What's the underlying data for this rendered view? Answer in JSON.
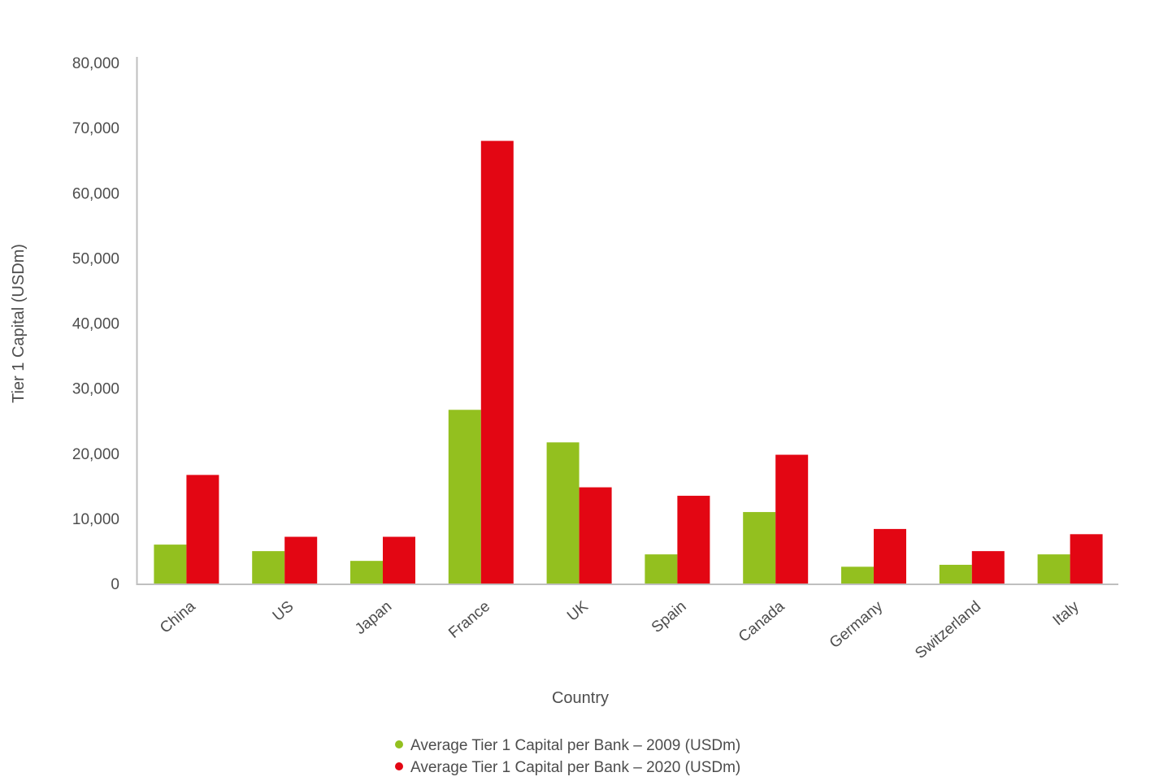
{
  "chart_data": {
    "type": "bar",
    "title": "",
    "xlabel": "Country",
    "ylabel": "Tier 1 Capital (USDm)",
    "categories": [
      "China",
      "US",
      "Japan",
      "France",
      "UK",
      "Spain",
      "Canada",
      "Germany",
      "Switzerland",
      "Italy"
    ],
    "series": [
      {
        "name": "Average Tier 1 Capital per Bank – 2009 (USDm)",
        "color": "#93c01f",
        "values": [
          6100,
          5100,
          3600,
          26800,
          21800,
          4600,
          11100,
          2700,
          3000,
          4600
        ]
      },
      {
        "name": "Average Tier 1 Capital per Bank – 2020 (USDm)",
        "color": "#e30613",
        "values": [
          16800,
          7300,
          7300,
          68100,
          14900,
          13600,
          19900,
          8500,
          5100,
          7700
        ]
      }
    ],
    "ylim": [
      0,
      80000
    ],
    "yticks": [
      0,
      10000,
      20000,
      30000,
      40000,
      50000,
      60000,
      70000,
      80000
    ],
    "ytick_labels": [
      "0",
      "10,000",
      "20,000",
      "30,000",
      "40,000",
      "50,000",
      "60,000",
      "70,000",
      "80,000"
    ],
    "grid": false,
    "legend_position": "bottom-center"
  }
}
